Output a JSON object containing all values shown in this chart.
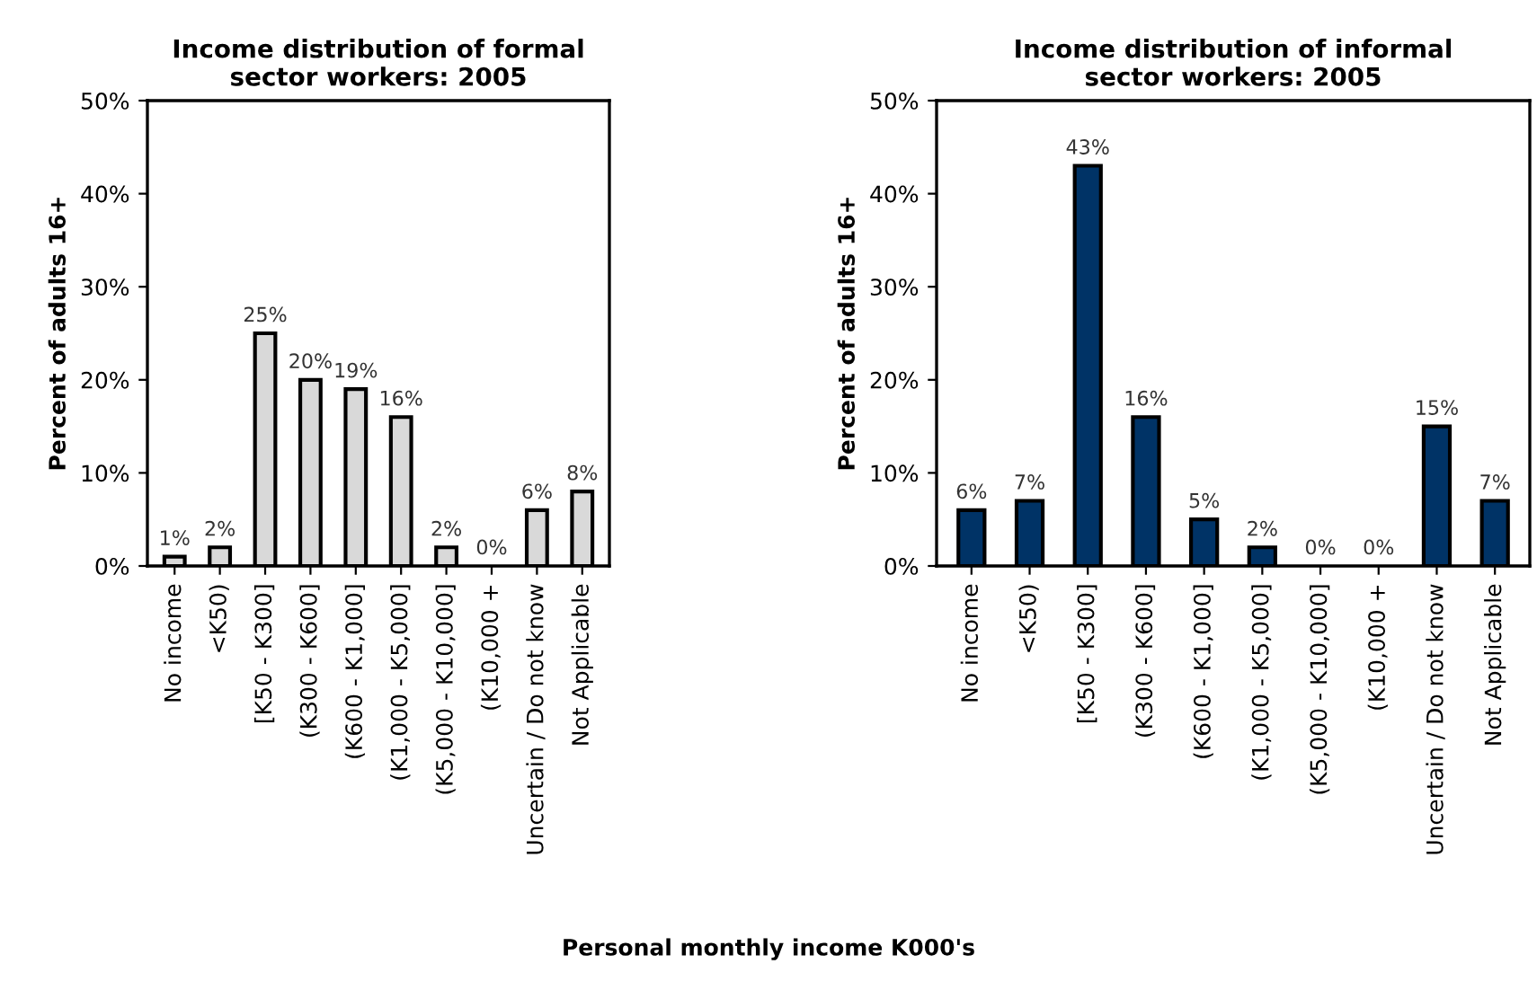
{
  "chart_data": [
    {
      "type": "bar",
      "title": "Income distribution of formal\nsector workers: 2005",
      "ylabel": "Percent of adults 16+",
      "categories": [
        "No income",
        "<K50)",
        "[K50 - K300]",
        "(K300 - K600]",
        "(K600 - K1,000]",
        "(K1,000 - K5,000]",
        "(K5,000 - K10,000]",
        "(K10,000 +",
        "Uncertain / Do not know",
        "Not Applicable"
      ],
      "series": [
        {
          "color": "#d9d9d9",
          "values": [
            1,
            2,
            25,
            20,
            19,
            16,
            2,
            0,
            6,
            8
          ],
          "value_labels": [
            "1%",
            "2%",
            "25%",
            "20%",
            "19%",
            "16%",
            "2%",
            "0%",
            "6%",
            "8%"
          ]
        }
      ],
      "ylim": [
        0,
        50
      ],
      "yticks": [
        {
          "value": 0,
          "label": "0%"
        },
        {
          "value": 10,
          "label": "10%"
        },
        {
          "value": 20,
          "label": "20%"
        },
        {
          "value": 30,
          "label": "30%"
        },
        {
          "value": 40,
          "label": "40%"
        },
        {
          "value": 50,
          "label": "50%"
        }
      ],
      "grid": false,
      "annotations": [
        "Personal monthly income K000's"
      ]
    },
    {
      "type": "bar",
      "title": "Income distribution of informal\nsector workers: 2005",
      "ylabel": "Percent of adults 16+",
      "categories": [
        "No income",
        "<K50)",
        "[K50 - K300]",
        "(K300 - K600]",
        "(K600 - K1,000]",
        "(K1,000 - K5,000]",
        "(K5,000 - K10,000]",
        "(K10,000 +",
        "Uncertain / Do not know",
        "Not Applicable"
      ],
      "series": [
        {
          "color": "#003366",
          "values": [
            6,
            7,
            43,
            16,
            5,
            2,
            0,
            0,
            15,
            7
          ],
          "value_labels": [
            "6%",
            "7%",
            "43%",
            "16%",
            "5%",
            "2%",
            "0%",
            "0%",
            "15%",
            "7%"
          ]
        }
      ],
      "ylim": [
        0,
        50
      ],
      "yticks": [
        {
          "value": 0,
          "label": "0%"
        },
        {
          "value": 10,
          "label": "10%"
        },
        {
          "value": 20,
          "label": "20%"
        },
        {
          "value": 30,
          "label": "30%"
        },
        {
          "value": 40,
          "label": "40%"
        },
        {
          "value": 50,
          "label": "50%"
        }
      ],
      "grid": false
    }
  ]
}
